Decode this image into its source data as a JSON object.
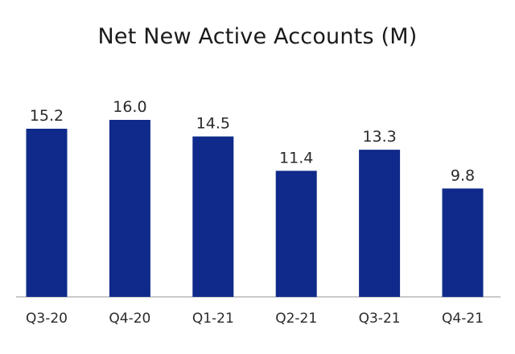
{
  "chart_data": {
    "type": "bar",
    "title": "Net New Active Accounts (M)",
    "categories": [
      "Q3-20",
      "Q4-20",
      "Q1-21",
      "Q2-21",
      "Q3-21",
      "Q4-21"
    ],
    "values": [
      15.2,
      16.0,
      14.5,
      11.4,
      13.3,
      9.8
    ],
    "value_labels": [
      "15.2",
      "16.0",
      "14.5",
      "11.4",
      "13.3",
      "9.8"
    ],
    "xlabel": "",
    "ylabel": "",
    "ylim": [
      0,
      16.0
    ],
    "grid": false,
    "legend": "none",
    "bar_color": "#0f2a8a"
  }
}
